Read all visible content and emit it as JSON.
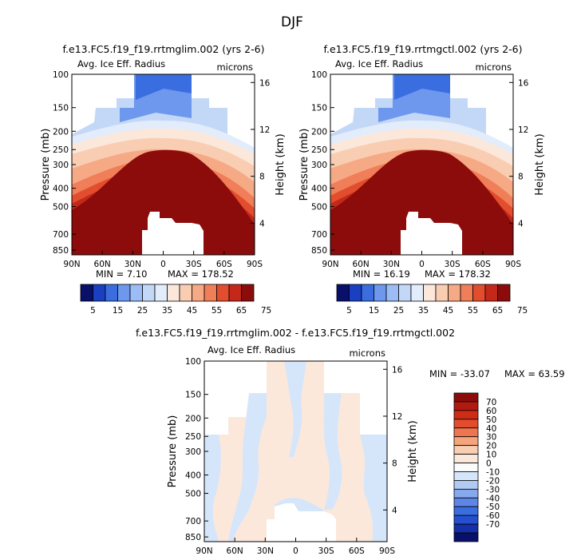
{
  "figure": {
    "title": "DJF",
    "units": "microns",
    "variable": "Avg. Ice Eff. Radius"
  },
  "chart_data": [
    {
      "type": "heatmap",
      "title": "f.e13.FC5.f19_f19.rrtmglim.002 (yrs 2-6)",
      "subtitle_left": "Avg. Ice Eff. Radius",
      "subtitle_right": "microns",
      "ylabel": "Pressure (mb)",
      "ylabel_right": "Height (km)",
      "x_ticks": [
        "90N",
        "60N",
        "30N",
        "0",
        "30S",
        "60S",
        "90S"
      ],
      "y_ticks": [
        "100",
        "150",
        "200",
        "250",
        "300",
        "400",
        "500",
        "700",
        "850"
      ],
      "height_ticks": [
        "16",
        "12",
        "8",
        "4"
      ],
      "min_label": "MIN = 7.10",
      "max_label": "MAX = 178.52",
      "min": 7.1,
      "max": 178.52,
      "colorbar_ticks": [
        "5",
        "15",
        "25",
        "35",
        "45",
        "55",
        "65",
        "75"
      ]
    },
    {
      "type": "heatmap",
      "title": "f.e13.FC5.f19_f19.rrtmgctl.002 (yrs 2-6)",
      "subtitle_left": "Avg. Ice Eff. Radius",
      "subtitle_right": "microns",
      "ylabel": "Pressure (mb)",
      "ylabel_right": "Height (km)",
      "x_ticks": [
        "90N",
        "60N",
        "30N",
        "0",
        "30S",
        "60S",
        "90S"
      ],
      "y_ticks": [
        "100",
        "150",
        "200",
        "250",
        "300",
        "400",
        "500",
        "700",
        "850"
      ],
      "height_ticks": [
        "16",
        "12",
        "8",
        "4"
      ],
      "min_label": "MIN = 16.19",
      "max_label": "MAX = 178.32",
      "min": 16.19,
      "max": 178.32,
      "colorbar_ticks": [
        "5",
        "15",
        "25",
        "35",
        "45",
        "55",
        "65",
        "75"
      ]
    },
    {
      "type": "heatmap",
      "title": "f.e13.FC5.f19_f19.rrtmglim.002 - f.e13.FC5.f19_f19.rrtmgctl.002",
      "subtitle_left": "Avg. Ice Eff. Radius",
      "subtitle_right": "microns",
      "ylabel": "Pressure (mb)",
      "ylabel_right": "Height (km)",
      "x_ticks": [
        "90N",
        "60N",
        "30N",
        "0",
        "30S",
        "60S",
        "90S"
      ],
      "y_ticks": [
        "100",
        "150",
        "200",
        "250",
        "300",
        "400",
        "500",
        "700",
        "850"
      ],
      "height_ticks": [
        "16",
        "12",
        "8",
        "4"
      ],
      "min_label": "MIN = -33.07",
      "max_label": "MAX = 63.59",
      "min": -33.07,
      "max": 63.59,
      "colorbar_ticks": [
        "70",
        "60",
        "50",
        "40",
        "30",
        "20",
        "10",
        "0",
        "-10",
        "-20",
        "-30",
        "-40",
        "-50",
        "-60",
        "-70"
      ]
    }
  ],
  "colors": {
    "seq": [
      "#08106a",
      "#1a3fc0",
      "#3a6ee0",
      "#6d98ee",
      "#9bbcf4",
      "#c3d7f7",
      "#e2ecfa",
      "#fbe8db",
      "#f9cdb2",
      "#f6a985",
      "#f07e58",
      "#e24d2e",
      "#c4281a",
      "#8c0c0c"
    ],
    "diff": [
      "#8c0c0c",
      "#b11a10",
      "#cf2c16",
      "#e24d2e",
      "#ef7550",
      "#f6a47c",
      "#f9cdb2",
      "#fbe8db",
      "#fbfbfb",
      "#d6e6fa",
      "#b0caf4",
      "#86a9ee",
      "#5d86e6",
      "#3a6ee0",
      "#2450cf",
      "#152fa8",
      "#08106a"
    ]
  }
}
